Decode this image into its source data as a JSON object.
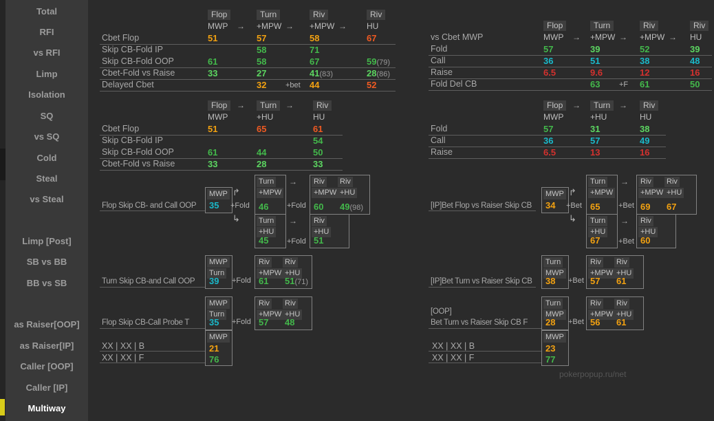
{
  "watermark": "pokerpopup.ru/net",
  "colors": {
    "orange": "#f2a111",
    "redorange": "#ef5a22",
    "red": "#d4312e",
    "green": "#43b84b",
    "lightgreen": "#5cd661",
    "cyan": "#1ab8c9",
    "accent_yellow": "#d8cc1a"
  },
  "glyphs": {
    "arrow": "→",
    "branch_up": "↱",
    "branch_down": "↳"
  },
  "sidebar": {
    "items": [
      "Total",
      "RFI",
      "vs RFI",
      "Limp",
      "Isolation",
      "SQ",
      "vs SQ",
      "Cold",
      "Steal",
      "vs Steal",
      "Limp [Post]",
      "SB vs BB",
      "BB vs SB",
      "as Raiser[OOP]",
      "as Raiser[IP]",
      "Caller [OOP]",
      "Caller [IP]",
      "Multiway"
    ],
    "active_index": 17,
    "active_item": "Multiway"
  },
  "tables": {
    "cbet_multiway": {
      "streets": [
        "Flop",
        "Turn",
        "Riv",
        "Riv"
      ],
      "positions": [
        "MWP",
        "+MPW",
        "+MPW",
        "HU"
      ],
      "rows": [
        {
          "label": "Cbet Flop",
          "cells": [
            {
              "v": "51",
              "c": "orange"
            },
            {
              "v": "57",
              "c": "orange"
            },
            {
              "v": "58",
              "c": "orange"
            },
            {
              "v": "67",
              "c": "redorange"
            }
          ],
          "sep": true
        },
        {
          "label": "Skip CB-Fold IP",
          "cells": [
            null,
            {
              "v": "58",
              "c": "green"
            },
            {
              "v": "71",
              "c": "green"
            },
            null
          ]
        },
        {
          "label": "Skip CB-Fold OOP",
          "cells": [
            {
              "v": "61",
              "c": "green"
            },
            {
              "v": "58",
              "c": "green"
            },
            {
              "v": "67",
              "c": "green"
            },
            {
              "v": "59",
              "c": "green",
              "note": "(79)"
            }
          ],
          "sep": true
        },
        {
          "label": "Cbet-Fold vs Raise",
          "cells": [
            {
              "v": "33",
              "c": "lightgreen"
            },
            {
              "v": "27",
              "c": "lightgreen"
            },
            {
              "v": "41",
              "c": "lightgreen",
              "note": "(83)"
            },
            {
              "v": "28",
              "c": "lightgreen",
              "note": "(86)"
            }
          ],
          "sep": true
        },
        {
          "label": "Delayed Cbet",
          "cells": [
            null,
            {
              "v": "32",
              "c": "orange"
            },
            {
              "v": "44",
              "c": "orange"
            },
            {
              "v": "52",
              "c": "redorange"
            }
          ],
          "gap": "+bet",
          "sep": true
        }
      ]
    },
    "cbet_headsup": {
      "streets": [
        "Flop",
        "Turn",
        "Riv"
      ],
      "positions": [
        "MWP",
        "+HU",
        "HU"
      ],
      "rows": [
        {
          "label": "Cbet Flop",
          "cells": [
            {
              "v": "51",
              "c": "orange"
            },
            {
              "v": "65",
              "c": "redorange"
            },
            {
              "v": "61",
              "c": "redorange"
            }
          ],
          "sep": true
        },
        {
          "label": "Skip CB-Fold IP",
          "cells": [
            null,
            null,
            {
              "v": "54",
              "c": "green"
            }
          ]
        },
        {
          "label": "Skip CB-Fold OOP",
          "cells": [
            {
              "v": "61",
              "c": "green"
            },
            {
              "v": "44",
              "c": "green"
            },
            {
              "v": "50",
              "c": "green"
            }
          ],
          "sep": true
        },
        {
          "label": "Cbet-Fold vs Raise",
          "cells": [
            {
              "v": "33",
              "c": "lightgreen"
            },
            {
              "v": "28",
              "c": "lightgreen"
            },
            {
              "v": "33",
              "c": "lightgreen"
            }
          ],
          "sep": true
        }
      ]
    },
    "vs_cbet_mwp": {
      "title": "vs Cbet MWP",
      "streets": [
        "Flop",
        "Turn",
        "Riv",
        "Riv"
      ],
      "positions": [
        "MWP",
        "+MPW",
        "+MPW",
        "HU"
      ],
      "rows": [
        {
          "label": "Fold",
          "cells": [
            {
              "v": "57",
              "c": "green"
            },
            {
              "v": "39",
              "c": "lightgreen"
            },
            {
              "v": "52",
              "c": "green"
            },
            {
              "v": "39",
              "c": "lightgreen"
            }
          ],
          "sep": true
        },
        {
          "label": "Call",
          "cells": [
            {
              "v": "36",
              "c": "cyan"
            },
            {
              "v": "51",
              "c": "cyan"
            },
            {
              "v": "38",
              "c": "cyan"
            },
            {
              "v": "48",
              "c": "cyan"
            }
          ],
          "sep": true
        },
        {
          "label": "Raise",
          "cells": [
            {
              "v": "6.5",
              "c": "red"
            },
            {
              "v": "9.6",
              "c": "red"
            },
            {
              "v": "12",
              "c": "red"
            },
            {
              "v": "16",
              "c": "red"
            }
          ],
          "sep": true
        },
        {
          "label": "Fold Del CB",
          "cells": [
            null,
            {
              "v": "63",
              "c": "green"
            },
            {
              "v": "61",
              "c": "green"
            },
            {
              "v": "50",
              "c": "green"
            }
          ],
          "gap": "+F",
          "sep": true
        }
      ]
    },
    "vs_cbet_headsup": {
      "streets": [
        "Flop",
        "Turn",
        "Riv"
      ],
      "positions": [
        "MWP",
        "+HU",
        "HU"
      ],
      "rows": [
        {
          "label": "Fold",
          "cells": [
            {
              "v": "57",
              "c": "green"
            },
            {
              "v": "31",
              "c": "lightgreen"
            },
            {
              "v": "38",
              "c": "lightgreen"
            }
          ],
          "sep": true
        },
        {
          "label": "Call",
          "cells": [
            {
              "v": "36",
              "c": "cyan"
            },
            {
              "v": "57",
              "c": "cyan"
            },
            {
              "v": "49",
              "c": "cyan"
            }
          ],
          "sep": true
        },
        {
          "label": "Raise",
          "cells": [
            {
              "v": "6.5",
              "c": "red"
            },
            {
              "v": "13",
              "c": "red"
            },
            {
              "v": "16",
              "c": "red"
            }
          ],
          "sep": true
        }
      ]
    }
  },
  "flows": {
    "flop_skip_call_oop": {
      "label": "Flop Skip CB- and Call OOP",
      "transition": "+Fold",
      "entry": {
        "headers": [
          "MWP"
        ],
        "value": "35",
        "c": "cyan"
      },
      "branch1_mid": {
        "headers": [
          "Turn",
          "+MPW"
        ],
        "value": "46",
        "c": "green"
      },
      "branch1_end": [
        {
          "headers": [
            "Riv",
            "+MPW"
          ],
          "value": "60",
          "c": "green"
        },
        {
          "headers": [
            "Riv",
            "+HU"
          ],
          "value": "49",
          "c": "green",
          "note": "(98)"
        }
      ],
      "branch2_mid": {
        "headers": [
          "Turn",
          "+HU"
        ],
        "value": "45",
        "c": "green"
      },
      "branch2_end": [
        {
          "headers": [
            "Riv",
            "+HU"
          ],
          "value": "51",
          "c": "green"
        }
      ]
    },
    "ip_bet_flop_vs_raiser_skip_cb": {
      "label": "[IP]Bet Flop vs Raiser Skip CB",
      "transition": "+Bet",
      "entry": {
        "headers": [
          "MWP"
        ],
        "value": "34",
        "c": "orange"
      },
      "branch1_mid": {
        "headers": [
          "Turn",
          "+MPW"
        ],
        "value": "65",
        "c": "orange"
      },
      "branch1_end": [
        {
          "headers": [
            "Riv",
            "+MPW"
          ],
          "value": "69",
          "c": "orange"
        },
        {
          "headers": [
            "Riv",
            "+HU"
          ],
          "value": "67",
          "c": "orange"
        }
      ],
      "branch2_mid": {
        "headers": [
          "Turn",
          "+HU"
        ],
        "value": "67",
        "c": "orange"
      },
      "branch2_end": [
        {
          "headers": [
            "Riv",
            "+HU"
          ],
          "value": "60",
          "c": "orange"
        }
      ]
    },
    "turn_skip_call_oop": {
      "label": "Turn Skip CB-and Call OOP",
      "transition": "+Fold",
      "entry": {
        "headers": [
          "MWP",
          "Turn"
        ],
        "value": "39",
        "c": "cyan"
      },
      "end": [
        {
          "headers": [
            "Riv",
            "+MPW"
          ],
          "value": "61",
          "c": "green"
        },
        {
          "headers": [
            "Riv",
            "+HU"
          ],
          "value": "51",
          "c": "green",
          "note": "(71)"
        }
      ]
    },
    "ip_bet_turn_vs_raiser_skip_cb": {
      "label": "[IP]Bet Turn vs Raiser Skip CB",
      "transition": "+Bet",
      "entry": {
        "headers": [
          "Turn",
          "MWP"
        ],
        "value": "38",
        "c": "orange"
      },
      "end": [
        {
          "headers": [
            "Riv",
            "+MPW"
          ],
          "value": "57",
          "c": "orange"
        },
        {
          "headers": [
            "Riv",
            "+HU"
          ],
          "value": "61",
          "c": "orange"
        }
      ]
    },
    "flop_skip_cb_call_probe_t": {
      "label": "Flop Skip CB-Call Probe T",
      "transition": "+Fold",
      "entry": {
        "headers": [
          "MWP",
          "Turn"
        ],
        "value": "35",
        "c": "cyan"
      },
      "end": [
        {
          "headers": [
            "Riv",
            "+MPW"
          ],
          "value": "57",
          "c": "green"
        },
        {
          "headers": [
            "Riv",
            "+HU"
          ],
          "value": "48",
          "c": "green"
        }
      ],
      "xx": {
        "header": "MWP",
        "rows": [
          {
            "label": "XX | XX | B",
            "value": "21",
            "c": "orange"
          },
          {
            "label": "XX | XX | F",
            "value": "76",
            "c": "green"
          }
        ]
      }
    },
    "oop_bet_turn_vs_raiser_skip_cb": {
      "label_lines": [
        "[OOP]",
        "Bet Turn vs Raiser Skip CB  F"
      ],
      "transition": "+Bet",
      "entry": {
        "headers": [
          "Turn",
          "MWP"
        ],
        "value": "28",
        "c": "orange"
      },
      "end": [
        {
          "headers": [
            "Riv",
            "+MPW"
          ],
          "value": "56",
          "c": "orange"
        },
        {
          "headers": [
            "Riv",
            "+HU"
          ],
          "value": "61",
          "c": "orange"
        }
      ],
      "xx": {
        "header": "MWP",
        "rows": [
          {
            "label": "XX | XX | B",
            "value": "23",
            "c": "orange"
          },
          {
            "label": "XX | XX | F",
            "value": "77",
            "c": "green"
          }
        ]
      }
    }
  }
}
